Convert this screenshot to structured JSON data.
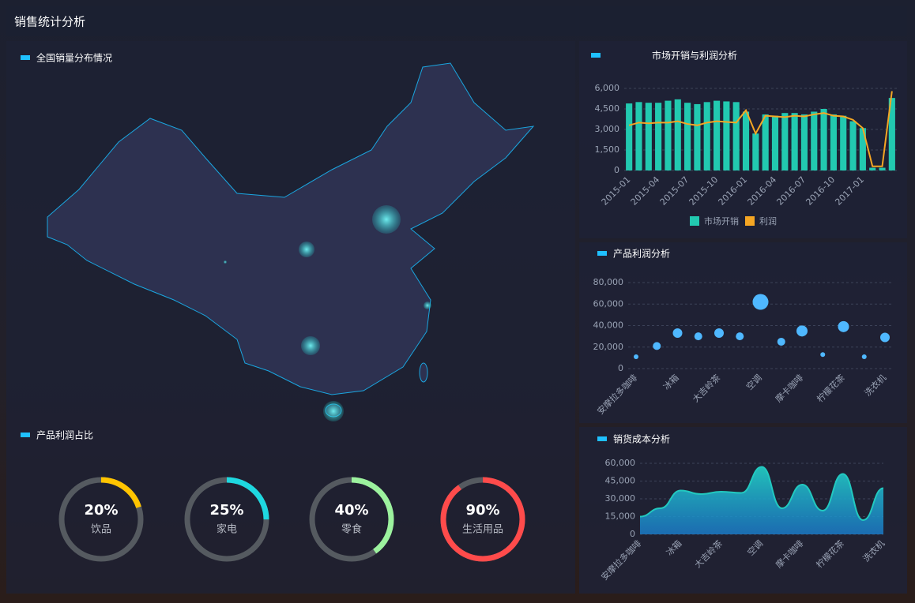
{
  "title": "销售统计分析",
  "map": {
    "title": "全国销量分布情况"
  },
  "chart_data": [
    {
      "type": "bar",
      "title": "市场开销与利润分析",
      "categories": [
        "2015-01",
        null,
        null,
        "2015-04",
        null,
        null,
        "2015-07",
        null,
        null,
        "2015-10",
        null,
        null,
        "2016-01",
        null,
        null,
        "2016-04",
        null,
        null,
        "2016-07",
        null,
        null,
        "2016-10",
        null,
        null,
        "2017-01",
        null,
        null,
        null
      ],
      "ylim": [
        0,
        6000
      ],
      "yticks": [
        0,
        {
          "value": 1500,
          "label": "1,500"
        },
        {
          "value": 3000,
          "label": "3,000"
        },
        {
          "value": 4500,
          "label": "4,500"
        },
        {
          "value": 6000,
          "label": "6,000"
        }
      ],
      "grid": true,
      "series": [
        {
          "name": "市场开销",
          "type": "bar",
          "color": "#22c9b0",
          "values": [
            4900,
            5000,
            4950,
            4950,
            5100,
            5200,
            4950,
            4850,
            5000,
            5100,
            5050,
            5000,
            4300,
            2700,
            4100,
            4000,
            4200,
            4200,
            4100,
            4300,
            4500,
            4100,
            4000,
            3600,
            3100,
            200,
            200,
            5300
          ]
        },
        {
          "name": "利润",
          "type": "line",
          "color": "#f5a623",
          "values": [
            3300,
            3500,
            3450,
            3500,
            3500,
            3600,
            3400,
            3300,
            3500,
            3600,
            3550,
            3500,
            4400,
            2700,
            4000,
            3950,
            3900,
            4000,
            3950,
            4100,
            4200,
            4000,
            3950,
            3700,
            3100,
            300,
            300,
            5800
          ]
        }
      ]
    },
    {
      "type": "scatter",
      "title": "产品利润分析",
      "categories": [
        "安摩拉多咖啡",
        null,
        "冰箱",
        null,
        "大吉岭茶",
        null,
        "空调",
        null,
        "摩卡咖啡",
        null,
        "柠檬花茶",
        null,
        "洗衣机"
      ],
      "ylim": [
        0,
        80000
      ],
      "yticks": [
        0,
        {
          "value": 20000,
          "label": "20,000"
        },
        {
          "value": 40000,
          "label": "40,000"
        },
        {
          "value": 60000,
          "label": "60,000"
        },
        {
          "value": 80000,
          "label": "80,000"
        }
      ],
      "grid": true,
      "color": "#4fb8ff",
      "values": [
        11000,
        21000,
        33000,
        30000,
        33000,
        30000,
        62000,
        25000,
        35000,
        13000,
        39000,
        11000,
        29000
      ],
      "sizes": [
        3,
        5,
        6,
        5,
        6,
        5,
        10,
        5,
        7,
        3,
        7,
        3,
        6
      ]
    },
    {
      "type": "area",
      "title": "销货成本分析",
      "categories": [
        "安摩拉多咖啡",
        null,
        "冰箱",
        null,
        "大吉岭茶",
        null,
        "空调",
        null,
        "摩卡咖啡",
        null,
        "柠檬花茶",
        null,
        "洗衣机"
      ],
      "ylim": [
        0,
        60000
      ],
      "yticks": [
        0,
        {
          "value": 15000,
          "label": "15,000"
        },
        {
          "value": 30000,
          "label": "30,000"
        },
        {
          "value": 45000,
          "label": "45,000"
        },
        {
          "value": 60000,
          "label": "60,000"
        }
      ],
      "grid": true,
      "color": "#22c9c0",
      "values": [
        15000,
        22000,
        37000,
        34000,
        36000,
        35000,
        57000,
        22000,
        42000,
        20000,
        51000,
        12000,
        39000
      ]
    },
    {
      "type": "gauge",
      "title": "产品利润占比",
      "categories": [
        "饮品",
        "家电",
        "零食",
        "生活用品"
      ],
      "values": [
        20,
        25,
        40,
        90
      ],
      "value_labels": [
        "20%",
        "25%",
        "40%",
        "90%"
      ],
      "colors": [
        "#ffc400",
        "#1ed8e0",
        "#9cf29e",
        "#ff4b4b"
      ]
    }
  ]
}
